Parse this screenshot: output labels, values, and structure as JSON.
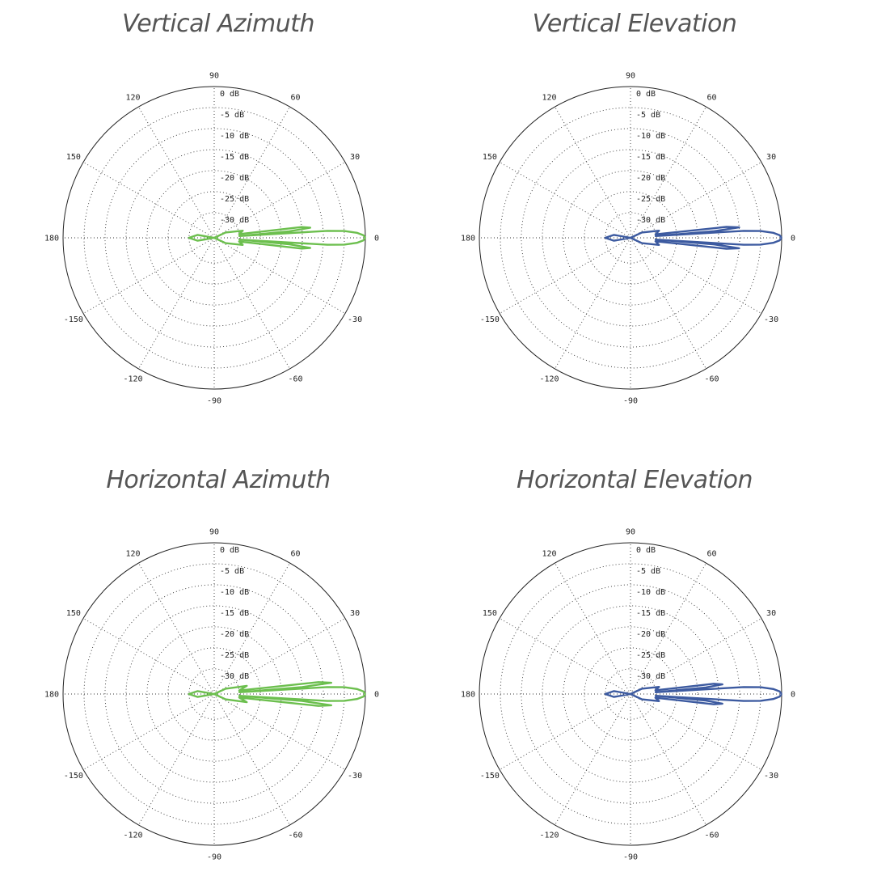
{
  "polar_axis": {
    "angle_ticks": [
      {
        "deg": 90,
        "label": "90"
      },
      {
        "deg": 60,
        "label": "60"
      },
      {
        "deg": 30,
        "label": "30"
      },
      {
        "deg": 0,
        "label": "0"
      },
      {
        "deg": -30,
        "label": "-30"
      },
      {
        "deg": -60,
        "label": "-60"
      },
      {
        "deg": -90,
        "label": "-90"
      },
      {
        "deg": -120,
        "label": "-120"
      },
      {
        "deg": -150,
        "label": "-150"
      },
      {
        "deg": 180,
        "label": "180"
      },
      {
        "deg": 150,
        "label": "150"
      },
      {
        "deg": 120,
        "label": "120"
      }
    ],
    "radial_ticks": [
      {
        "db": 0,
        "label": "0 dB"
      },
      {
        "db": -5,
        "label": "-5 dB"
      },
      {
        "db": -10,
        "label": "-10 dB"
      },
      {
        "db": -15,
        "label": "-15 dB"
      },
      {
        "db": -20,
        "label": "-20 dB"
      },
      {
        "db": -25,
        "label": "-25 dB"
      },
      {
        "db": -30,
        "label": "-30 dB"
      }
    ],
    "r_range_db": [
      -36,
      0
    ],
    "grid": true
  },
  "chart_data": [
    {
      "type": "line",
      "title": "Vertical Azimuth",
      "color": "#6cbf4e",
      "series": [
        {
          "points": [
            {
              "angle_deg": 0,
              "db": 0
            },
            {
              "angle_deg": 1,
              "db": -0.5
            },
            {
              "angle_deg": 2,
              "db": -2
            },
            {
              "angle_deg": 3,
              "db": -5
            },
            {
              "angle_deg": 3.5,
              "db": -9
            },
            {
              "angle_deg": 4,
              "db": -30
            },
            {
              "angle_deg": 5,
              "db": -18
            },
            {
              "angle_deg": 6,
              "db": -13
            },
            {
              "angle_deg": 7,
              "db": -15
            },
            {
              "angle_deg": 8.5,
              "db": -30
            },
            {
              "angle_deg": 14,
              "db": -29
            },
            {
              "angle_deg": 25,
              "db": -33
            },
            {
              "angle_deg": 60,
              "db": -36
            },
            {
              "angle_deg": 120,
              "db": -36
            },
            {
              "angle_deg": 170,
              "db": -32
            },
            {
              "angle_deg": 180,
              "db": -30
            },
            {
              "angle_deg": -170,
              "db": -32
            },
            {
              "angle_deg": -120,
              "db": -36
            },
            {
              "angle_deg": -60,
              "db": -36
            },
            {
              "angle_deg": -25,
              "db": -33
            },
            {
              "angle_deg": -14,
              "db": -29
            },
            {
              "angle_deg": -8.5,
              "db": -30
            },
            {
              "angle_deg": -7,
              "db": -15
            },
            {
              "angle_deg": -6,
              "db": -13
            },
            {
              "angle_deg": -5,
              "db": -18
            },
            {
              "angle_deg": -4,
              "db": -30
            },
            {
              "angle_deg": -3.5,
              "db": -9
            },
            {
              "angle_deg": -3,
              "db": -5
            },
            {
              "angle_deg": -2,
              "db": -2
            },
            {
              "angle_deg": -1,
              "db": -0.5
            },
            {
              "angle_deg": 0,
              "db": 0
            }
          ]
        }
      ]
    },
    {
      "type": "line",
      "title": "Vertical Elevation",
      "color": "#3c5aa0",
      "series": [
        {
          "points": [
            {
              "angle_deg": 0,
              "db": 0
            },
            {
              "angle_deg": 1,
              "db": -0.5
            },
            {
              "angle_deg": 2,
              "db": -2
            },
            {
              "angle_deg": 3,
              "db": -5
            },
            {
              "angle_deg": 3.5,
              "db": -9
            },
            {
              "angle_deg": 4,
              "db": -30
            },
            {
              "angle_deg": 4.5,
              "db": -16
            },
            {
              "angle_deg": 5.5,
              "db": -10
            },
            {
              "angle_deg": 6.5,
              "db": -13
            },
            {
              "angle_deg": 8,
              "db": -30
            },
            {
              "angle_deg": 14,
              "db": -29
            },
            {
              "angle_deg": 25,
              "db": -33
            },
            {
              "angle_deg": 60,
              "db": -36
            },
            {
              "angle_deg": 120,
              "db": -36
            },
            {
              "angle_deg": 170,
              "db": -32
            },
            {
              "angle_deg": 180,
              "db": -30
            },
            {
              "angle_deg": -170,
              "db": -32
            },
            {
              "angle_deg": -120,
              "db": -36
            },
            {
              "angle_deg": -60,
              "db": -36
            },
            {
              "angle_deg": -25,
              "db": -33
            },
            {
              "angle_deg": -14,
              "db": -29
            },
            {
              "angle_deg": -8,
              "db": -30
            },
            {
              "angle_deg": -6.5,
              "db": -13
            },
            {
              "angle_deg": -5.5,
              "db": -10
            },
            {
              "angle_deg": -4.5,
              "db": -16
            },
            {
              "angle_deg": -4,
              "db": -30
            },
            {
              "angle_deg": -3.5,
              "db": -9
            },
            {
              "angle_deg": -3,
              "db": -5
            },
            {
              "angle_deg": -2,
              "db": -2
            },
            {
              "angle_deg": -1,
              "db": -0.5
            },
            {
              "angle_deg": 0,
              "db": 0
            }
          ]
        }
      ]
    },
    {
      "type": "line",
      "title": "Horizontal Azimuth",
      "color": "#6cbf4e",
      "series": [
        {
          "points": [
            {
              "angle_deg": 0,
              "db": 0
            },
            {
              "angle_deg": 1,
              "db": -0.5
            },
            {
              "angle_deg": 2,
              "db": -2
            },
            {
              "angle_deg": 3,
              "db": -5
            },
            {
              "angle_deg": 3.5,
              "db": -9
            },
            {
              "angle_deg": 4,
              "db": -30
            },
            {
              "angle_deg": 4.5,
              "db": -15
            },
            {
              "angle_deg": 5.5,
              "db": -8
            },
            {
              "angle_deg": 6.5,
              "db": -11
            },
            {
              "angle_deg": 8,
              "db": -30
            },
            {
              "angle_deg": 14,
              "db": -28
            },
            {
              "angle_deg": 25,
              "db": -33
            },
            {
              "angle_deg": 60,
              "db": -36
            },
            {
              "angle_deg": 120,
              "db": -36
            },
            {
              "angle_deg": 170,
              "db": -32
            },
            {
              "angle_deg": 180,
              "db": -30
            },
            {
              "angle_deg": -170,
              "db": -32
            },
            {
              "angle_deg": -120,
              "db": -36
            },
            {
              "angle_deg": -60,
              "db": -36
            },
            {
              "angle_deg": -25,
              "db": -33
            },
            {
              "angle_deg": -14,
              "db": -28
            },
            {
              "angle_deg": -8,
              "db": -30
            },
            {
              "angle_deg": -6.5,
              "db": -11
            },
            {
              "angle_deg": -5.5,
              "db": -8
            },
            {
              "angle_deg": -4.5,
              "db": -15
            },
            {
              "angle_deg": -4,
              "db": -30
            },
            {
              "angle_deg": -3.5,
              "db": -9
            },
            {
              "angle_deg": -3,
              "db": -5
            },
            {
              "angle_deg": -2,
              "db": -2
            },
            {
              "angle_deg": -1,
              "db": -0.5
            },
            {
              "angle_deg": 0,
              "db": 0
            }
          ]
        }
      ]
    },
    {
      "type": "line",
      "title": "Horizontal Elevation",
      "color": "#3c5aa0",
      "series": [
        {
          "points": [
            {
              "angle_deg": 0,
              "db": 0
            },
            {
              "angle_deg": 1,
              "db": -0.5
            },
            {
              "angle_deg": 2,
              "db": -2
            },
            {
              "angle_deg": 3,
              "db": -5
            },
            {
              "angle_deg": 3.5,
              "db": -9
            },
            {
              "angle_deg": 4,
              "db": -30
            },
            {
              "angle_deg": 5,
              "db": -18
            },
            {
              "angle_deg": 6,
              "db": -14
            },
            {
              "angle_deg": 7,
              "db": -16
            },
            {
              "angle_deg": 8.5,
              "db": -30
            },
            {
              "angle_deg": 14,
              "db": -29
            },
            {
              "angle_deg": 25,
              "db": -33
            },
            {
              "angle_deg": 60,
              "db": -36
            },
            {
              "angle_deg": 120,
              "db": -36
            },
            {
              "angle_deg": 170,
              "db": -32
            },
            {
              "angle_deg": 180,
              "db": -30
            },
            {
              "angle_deg": -170,
              "db": -32
            },
            {
              "angle_deg": -120,
              "db": -36
            },
            {
              "angle_deg": -60,
              "db": -36
            },
            {
              "angle_deg": -25,
              "db": -33
            },
            {
              "angle_deg": -14,
              "db": -29
            },
            {
              "angle_deg": -8.5,
              "db": -30
            },
            {
              "angle_deg": -7,
              "db": -16
            },
            {
              "angle_deg": -6,
              "db": -14
            },
            {
              "angle_deg": -5,
              "db": -18
            },
            {
              "angle_deg": -4,
              "db": -30
            },
            {
              "angle_deg": -3.5,
              "db": -9
            },
            {
              "angle_deg": -3,
              "db": -5
            },
            {
              "angle_deg": -2,
              "db": -2
            },
            {
              "angle_deg": -1,
              "db": -0.5
            },
            {
              "angle_deg": 0,
              "db": 0
            }
          ]
        }
      ]
    }
  ]
}
